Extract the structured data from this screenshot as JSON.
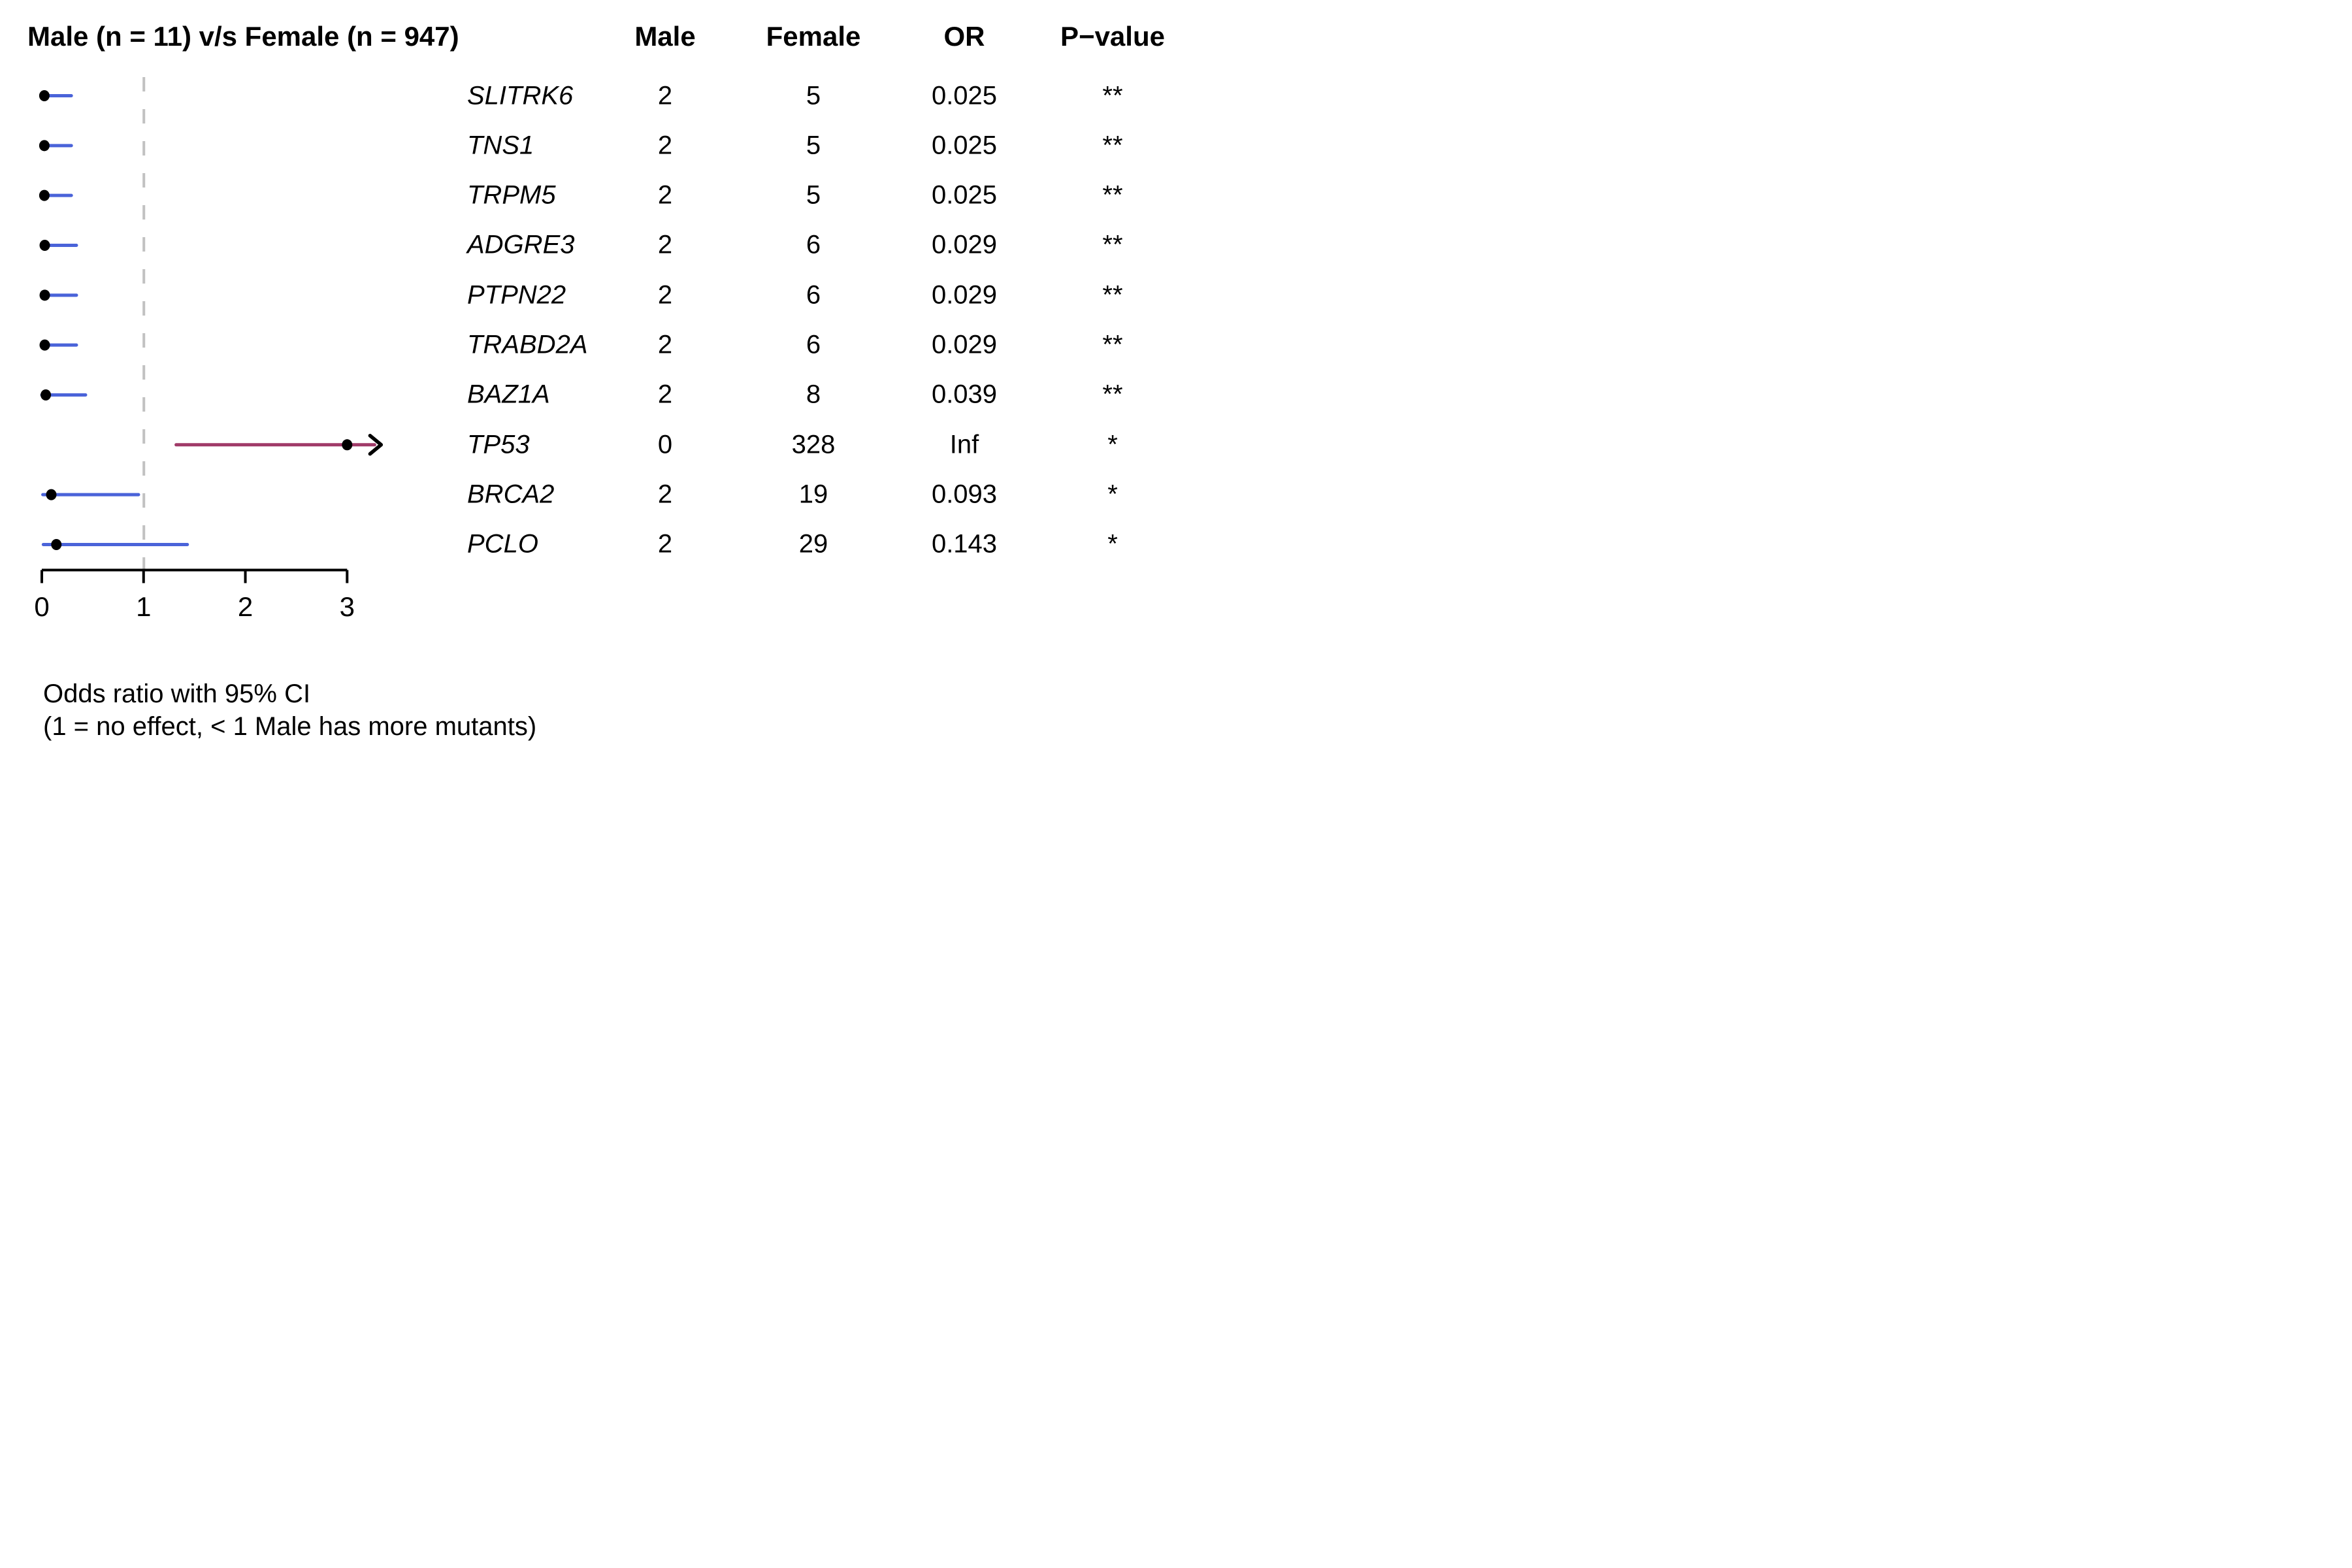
{
  "title": "Male (n = 11) v/s Female (n = 947)",
  "columns": {
    "male": "Male",
    "female": "Female",
    "or": "OR",
    "pvalue": "P−value"
  },
  "caption": {
    "line1": "Odds ratio with 95% CI",
    "line2": "(1 = no effect, < 1 Male has more mutants)"
  },
  "colors": {
    "blue": "#4a63d9",
    "red": "#a03a68",
    "dashed": "#c1c1c1",
    "axis": "#000000",
    "dot": "#000000"
  },
  "chart_data": {
    "type": "forest-plot-dot-ci",
    "title": "Male (n = 11) v/s Female (n = 947)",
    "xlabel": "Odds ratio",
    "x_ticks": [
      "0",
      "1",
      "2",
      "3"
    ],
    "xlim": [
      0,
      3.35
    ],
    "reference_line": 1,
    "grid": false,
    "rows": [
      {
        "gene": "SLITRK6",
        "male": "2",
        "female": "5",
        "or": "0.025",
        "p": "**",
        "dot": 0.025,
        "ci_low": 0,
        "ci_high": 0.29,
        "color": "blue",
        "arrow": false
      },
      {
        "gene": "TNS1",
        "male": "2",
        "female": "5",
        "or": "0.025",
        "p": "**",
        "dot": 0.025,
        "ci_low": 0,
        "ci_high": 0.29,
        "color": "blue",
        "arrow": false
      },
      {
        "gene": "TRPM5",
        "male": "2",
        "female": "5",
        "or": "0.025",
        "p": "**",
        "dot": 0.025,
        "ci_low": 0,
        "ci_high": 0.29,
        "color": "blue",
        "arrow": false
      },
      {
        "gene": "ADGRE3",
        "male": "2",
        "female": "6",
        "or": "0.029",
        "p": "**",
        "dot": 0.029,
        "ci_low": 0,
        "ci_high": 0.34,
        "color": "blue",
        "arrow": false
      },
      {
        "gene": "PTPN22",
        "male": "2",
        "female": "6",
        "or": "0.029",
        "p": "**",
        "dot": 0.029,
        "ci_low": 0,
        "ci_high": 0.34,
        "color": "blue",
        "arrow": false
      },
      {
        "gene": "TRABD2A",
        "male": "2",
        "female": "6",
        "or": "0.029",
        "p": "**",
        "dot": 0.029,
        "ci_low": 0,
        "ci_high": 0.34,
        "color": "blue",
        "arrow": false
      },
      {
        "gene": "BAZ1A",
        "male": "2",
        "female": "8",
        "or": "0.039",
        "p": "**",
        "dot": 0.039,
        "ci_low": 0,
        "ci_high": 0.43,
        "color": "blue",
        "arrow": false
      },
      {
        "gene": "TP53",
        "male": "0",
        "female": "328",
        "or": "Inf",
        "p": "*",
        "dot": 3.0,
        "ci_low": 1.32,
        "ci_high": 3.27,
        "color": "red",
        "arrow": true
      },
      {
        "gene": "BRCA2",
        "male": "2",
        "female": "19",
        "or": "0.093",
        "p": "*",
        "dot": 0.093,
        "ci_low": 0.01,
        "ci_high": 0.95,
        "color": "blue",
        "arrow": false
      },
      {
        "gene": "PCLO",
        "male": "2",
        "female": "29",
        "or": "0.143",
        "p": "*",
        "dot": 0.143,
        "ci_low": 0.015,
        "ci_high": 1.43,
        "color": "blue",
        "arrow": false
      }
    ]
  }
}
